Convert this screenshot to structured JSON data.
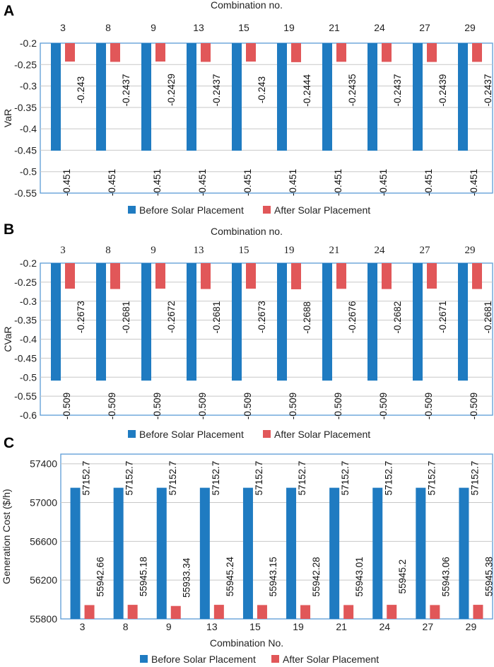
{
  "colors": {
    "before": "#1f7bc1",
    "after": "#e15759",
    "frame": "#5b9bd5",
    "grid": "#c8c8c8"
  },
  "chart_data": [
    {
      "panel": "A",
      "type": "bar",
      "title": "",
      "xlabel": "Combination no.",
      "ylabel": "VaR",
      "categories": [
        "3",
        "8",
        "9",
        "13",
        "15",
        "19",
        "21",
        "24",
        "27",
        "29"
      ],
      "ylim": [
        -0.55,
        -0.2
      ],
      "yticks": [
        -0.2,
        -0.25,
        -0.3,
        -0.35,
        -0.4,
        -0.45,
        -0.5,
        -0.55
      ],
      "ytick_labels": [
        "-0.2",
        "-0.25",
        "-0.3",
        "-0.35",
        "-0.4",
        "-0.45",
        "-0.5",
        "-0.55"
      ],
      "series": [
        {
          "name": "Before Solar Placement",
          "values": [
            -0.451,
            -0.451,
            -0.451,
            -0.451,
            -0.451,
            -0.451,
            -0.451,
            -0.451,
            -0.451,
            -0.451
          ],
          "labels": [
            "-0.451",
            "-0.451",
            "-0.451",
            "-0.451",
            "-0.451",
            "-0.451",
            "-0.451",
            "-0.451",
            "-0.451",
            "-0.451"
          ]
        },
        {
          "name": "After Solar Placement",
          "values": [
            -0.243,
            -0.2437,
            -0.2429,
            -0.2437,
            -0.243,
            -0.2444,
            -0.2435,
            -0.2437,
            -0.2439,
            -0.2437
          ],
          "labels": [
            "-0.243",
            "-0.2437",
            "-0.2429",
            "-0.2437",
            "-0.243",
            "-0.2444",
            "-0.2435",
            "-0.2437",
            "-0.2439",
            "-0.2437"
          ]
        }
      ],
      "legend": [
        "Before Solar Placement",
        "After Solar Placement"
      ]
    },
    {
      "panel": "B",
      "type": "bar",
      "title": "",
      "xlabel": "Combination no.",
      "ylabel": "CVaR",
      "categories": [
        "3",
        "8",
        "9",
        "13",
        "15",
        "19",
        "21",
        "24",
        "27",
        "29"
      ],
      "ylim": [
        -0.6,
        -0.2
      ],
      "yticks": [
        -0.2,
        -0.25,
        -0.3,
        -0.35,
        -0.4,
        -0.45,
        -0.5,
        -0.55,
        -0.6
      ],
      "ytick_labels": [
        "-0.2",
        "-0.25",
        "-0.3",
        "-0.35",
        "-0.4",
        "-0.45",
        "-0.5",
        "-0.55",
        "-0.6"
      ],
      "series": [
        {
          "name": "Before Solar Placement",
          "values": [
            -0.509,
            -0.509,
            -0.509,
            -0.509,
            -0.509,
            -0.509,
            -0.509,
            -0.509,
            -0.509,
            -0.509
          ],
          "labels": [
            "-0.509",
            "-0.509",
            "-0.509",
            "-0.509",
            "-0.509",
            "-0.509",
            "-0.509",
            "-0.509",
            "-0.509",
            "-0.509"
          ]
        },
        {
          "name": "After Solar Placement",
          "values": [
            -0.2673,
            -0.2681,
            -0.2672,
            -0.2681,
            -0.2673,
            -0.2688,
            -0.2676,
            -0.2682,
            -0.2671,
            -0.2681
          ],
          "labels": [
            "-0.2673",
            "-0.2681",
            "-0.2672",
            "-0.2681",
            "-0.2673",
            "-0.2688",
            "-0.2676",
            "-0.2682",
            "-0.2671",
            "-0.2681"
          ]
        }
      ],
      "legend": [
        "Before Solar Placement",
        "After Solar Placement"
      ]
    },
    {
      "panel": "C",
      "type": "bar",
      "title": "",
      "xlabel": "Combination No.",
      "ylabel": "Generation Cost ($/h)",
      "categories": [
        "3",
        "8",
        "9",
        "13",
        "15",
        "19",
        "21",
        "24",
        "27",
        "29"
      ],
      "ylim": [
        55800,
        57500
      ],
      "yticks": [
        55800,
        56200,
        56600,
        57000,
        57400
      ],
      "ytick_labels": [
        "55800",
        "56200",
        "56600",
        "57000",
        "57400"
      ],
      "series": [
        {
          "name": "Before Solar Placement",
          "values": [
            57152.7,
            57152.7,
            57152.7,
            57152.7,
            57152.7,
            57152.7,
            57152.7,
            57152.7,
            57152.7,
            57152.7
          ],
          "labels": [
            "57152.7",
            "57152.7",
            "57152.7",
            "57152.7",
            "57152.7",
            "57152.7",
            "57152.7",
            "57152.7",
            "57152.7",
            "57152.7"
          ]
        },
        {
          "name": "After Solar Placement",
          "values": [
            55942.66,
            55945.18,
            55933.34,
            55945.24,
            55943.15,
            55942.28,
            55943.01,
            55945.2,
            55943.06,
            55945.38
          ],
          "labels": [
            "55942.66",
            "55945.18",
            "55933.34",
            "55945.24",
            "55943.15",
            "55942.28",
            "55943.01",
            "55945.2",
            "55943.06",
            "55945.38"
          ]
        }
      ],
      "legend": [
        "Before Solar Placement",
        "After Solar Placement"
      ]
    }
  ]
}
